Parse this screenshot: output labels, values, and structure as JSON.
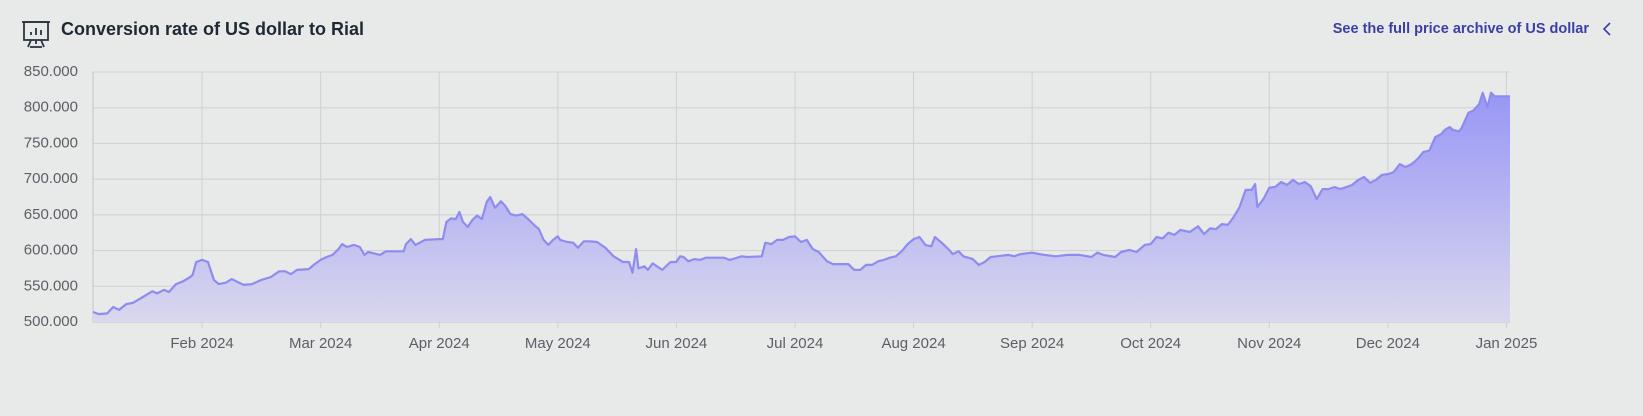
{
  "header": {
    "link": "See the full price archive of US dollar"
  },
  "chart_data": {
    "type": "area",
    "title": "Conversion rate of US dollar to Rial",
    "color": "#8f8cf0",
    "grid": true,
    "x": [
      0.08,
      0.13,
      0.2,
      0.25,
      0.3,
      0.36,
      0.42,
      0.5,
      0.58,
      0.62,
      0.68,
      0.72,
      0.78,
      0.84,
      0.9,
      0.92,
      0.95,
      1.0,
      1.05,
      1.1,
      1.14,
      1.2,
      1.25,
      1.3,
      1.35,
      1.42,
      1.5,
      1.58,
      1.65,
      1.7,
      1.75,
      1.8,
      1.9,
      1.95,
      2.0,
      2.05,
      2.1,
      2.15,
      2.18,
      2.22,
      2.28,
      2.33,
      2.37,
      2.4,
      2.5,
      2.55,
      2.7,
      2.72,
      2.76,
      2.8,
      2.88,
      3.0,
      3.03,
      3.06,
      3.1,
      3.14,
      3.17,
      3.2,
      3.24,
      3.28,
      3.32,
      3.36,
      3.4,
      3.43,
      3.47,
      3.52,
      3.56,
      3.6,
      3.65,
      3.7,
      3.75,
      3.8,
      3.84,
      3.88,
      3.92,
      3.96,
      4.0,
      4.02,
      4.08,
      4.13,
      4.17,
      4.22,
      4.27,
      4.33,
      4.4,
      4.47,
      4.55,
      4.6,
      4.63,
      4.66,
      4.68,
      4.73,
      4.76,
      4.8,
      4.88,
      4.95,
      5.0,
      5.03,
      5.06,
      5.1,
      5.15,
      5.2,
      5.25,
      5.3,
      5.4,
      5.45,
      5.55,
      5.6,
      5.72,
      5.75,
      5.8,
      5.85,
      5.9,
      5.95,
      6.0,
      6.05,
      6.1,
      6.15,
      6.2,
      6.27,
      6.32,
      6.4,
      6.45,
      6.5,
      6.55,
      6.6,
      6.65,
      6.7,
      6.75,
      6.8,
      6.85,
      6.9,
      6.95,
      7.0,
      7.05,
      7.1,
      7.15,
      7.18,
      7.25,
      7.3,
      7.33,
      7.38,
      7.42,
      7.5,
      7.55,
      7.6,
      7.65,
      7.7,
      7.8,
      7.85,
      7.9,
      8.0,
      8.1,
      8.2,
      8.3,
      8.4,
      8.5,
      8.55,
      8.6,
      8.7,
      8.75,
      8.82,
      8.88,
      8.95,
      9.0,
      9.05,
      9.1,
      9.15,
      9.2,
      9.25,
      9.33,
      9.4,
      9.45,
      9.5,
      9.55,
      9.6,
      9.65,
      9.7,
      9.75,
      9.8,
      9.85,
      9.88,
      9.9,
      9.95,
      10.0,
      10.05,
      10.1,
      10.15,
      10.2,
      10.25,
      10.3,
      10.35,
      10.4,
      10.45,
      10.5,
      10.55,
      10.6,
      10.65,
      10.7,
      10.75,
      10.8,
      10.85,
      10.9,
      10.95,
      11.0,
      11.05,
      11.1,
      11.15,
      11.2,
      11.25,
      11.3,
      11.35,
      11.4,
      11.45,
      11.48,
      11.52,
      11.55,
      11.6,
      11.62,
      11.68,
      11.72,
      11.77,
      11.8,
      11.84,
      11.87,
      11.9,
      12.03
    ],
    "values": [
      514000,
      511000,
      512000,
      521000,
      517000,
      525000,
      527000,
      535000,
      543000,
      540000,
      545000,
      542000,
      553000,
      557000,
      563000,
      566000,
      584000,
      587000,
      584000,
      559000,
      553000,
      555000,
      560000,
      556000,
      552000,
      553000,
      559000,
      563000,
      571000,
      571000,
      567000,
      573000,
      574000,
      581000,
      587000,
      591000,
      594000,
      602000,
      609000,
      605000,
      608000,
      605000,
      594000,
      598000,
      594000,
      599000,
      599000,
      609000,
      616000,
      608000,
      615000,
      616000,
      616000,
      640000,
      645000,
      644000,
      654000,
      640000,
      633000,
      643000,
      649000,
      644000,
      668000,
      675000,
      660000,
      669000,
      662000,
      651000,
      649000,
      651000,
      644000,
      636000,
      630000,
      615000,
      608000,
      615000,
      620000,
      615000,
      612000,
      611000,
      604000,
      613000,
      613000,
      612000,
      604000,
      592000,
      584000,
      584000,
      569000,
      602000,
      575000,
      578000,
      573000,
      582000,
      573000,
      584000,
      584000,
      592000,
      591000,
      585000,
      588000,
      587000,
      590000,
      590000,
      590000,
      587000,
      592000,
      591000,
      592000,
      611000,
      609000,
      615000,
      615000,
      619000,
      620000,
      612000,
      615000,
      602000,
      598000,
      585000,
      581000,
      581000,
      581000,
      573000,
      573000,
      580000,
      580000,
      585000,
      587000,
      590000,
      592000,
      599000,
      609000,
      616000,
      619000,
      608000,
      606000,
      619000,
      609000,
      601000,
      595000,
      599000,
      592000,
      588000,
      580000,
      584000,
      591000,
      592000,
      594000,
      592000,
      595000,
      597000,
      594000,
      592000,
      594000,
      594000,
      591000,
      597000,
      594000,
      591000,
      598000,
      601000,
      598000,
      608000,
      609000,
      619000,
      617000,
      625000,
      622000,
      629000,
      626000,
      634000,
      623000,
      631000,
      630000,
      637000,
      636000,
      647000,
      661000,
      685000,
      685000,
      693000,
      661000,
      672000,
      688000,
      689000,
      696000,
      692000,
      699000,
      693000,
      696000,
      690000,
      672000,
      686000,
      686000,
      689000,
      686000,
      689000,
      692000,
      699000,
      703000,
      695000,
      699000,
      706000,
      707000,
      710000,
      721000,
      717000,
      721000,
      728000,
      738000,
      740000,
      759000,
      763000,
      769000,
      773000,
      769000,
      767000,
      771000,
      793000,
      796000,
      805000,
      821000,
      801000,
      821000,
      816000,
      816000
    ],
    "xlim": [
      0.08,
      12.03
    ],
    "xticks": [
      {
        "value": 1,
        "label": "Feb 2024"
      },
      {
        "value": 2,
        "label": "Mar 2024"
      },
      {
        "value": 3,
        "label": "Apr 2024"
      },
      {
        "value": 4,
        "label": "May 2024"
      },
      {
        "value": 5,
        "label": "Jun 2024"
      },
      {
        "value": 6,
        "label": "Jul 2024"
      },
      {
        "value": 7,
        "label": "Aug 2024"
      },
      {
        "value": 8,
        "label": "Sep 2024"
      },
      {
        "value": 9,
        "label": "Oct 2024"
      },
      {
        "value": 10,
        "label": "Nov 2024"
      },
      {
        "value": 11,
        "label": "Dec 2024"
      },
      {
        "value": 12,
        "label": "Jan 2025"
      }
    ],
    "ylim": [
      500000,
      850000
    ],
    "yticks": [
      {
        "value": 500000,
        "label": "500.000"
      },
      {
        "value": 550000,
        "label": "550.000"
      },
      {
        "value": 600000,
        "label": "600.000"
      },
      {
        "value": 650000,
        "label": "650.000"
      },
      {
        "value": 700000,
        "label": "700.000"
      },
      {
        "value": 750000,
        "label": "750.000"
      },
      {
        "value": 800000,
        "label": "800.000"
      },
      {
        "value": 850000,
        "label": "850.000"
      }
    ]
  }
}
